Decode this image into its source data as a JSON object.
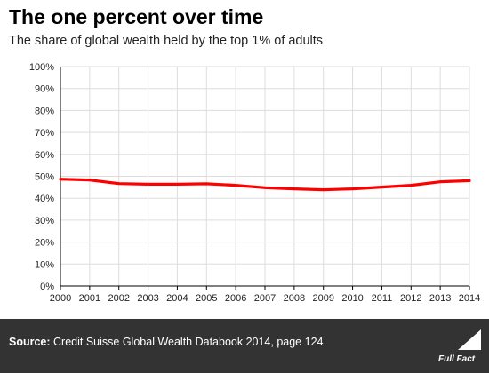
{
  "title": "The one percent over time",
  "subtitle": "The share of global wealth held by the top 1% of adults",
  "source": {
    "label": "Source:",
    "text": "Credit Suisse Global Wealth Databook 2014, page 124"
  },
  "logo": {
    "text": "Full Fact",
    "icon": "full-fact-logo-icon"
  },
  "colors": {
    "line": "#ff0000",
    "grid": "#dddddd",
    "axis": "#000000",
    "footer": "#333333"
  },
  "chart_data": {
    "type": "line",
    "title": "The one percent over time",
    "subtitle": "The share of global wealth held by the top 1% of adults",
    "xlabel": "",
    "ylabel": "",
    "x": [
      2000,
      2001,
      2002,
      2003,
      2004,
      2005,
      2006,
      2007,
      2008,
      2009,
      2010,
      2011,
      2012,
      2013,
      2014
    ],
    "x_tick_labels": [
      "2000",
      "2001",
      "2002",
      "2003",
      "2004",
      "2005",
      "2006",
      "2007",
      "2008",
      "2009",
      "2010",
      "2011",
      "2012",
      "2013",
      "2014"
    ],
    "y_tick_labels": [
      "0%",
      "10%",
      "20%",
      "30%",
      "40%",
      "50%",
      "60%",
      "70%",
      "80%",
      "90%",
      "100%"
    ],
    "y_ticks": [
      0,
      10,
      20,
      30,
      40,
      50,
      60,
      70,
      80,
      90,
      100
    ],
    "ylim": [
      0,
      100
    ],
    "grid": true,
    "series": [
      {
        "values": [
          48.7,
          48.3,
          46.7,
          46.4,
          46.4,
          46.6,
          45.9,
          44.8,
          44.3,
          43.9,
          44.3,
          45.1,
          45.9,
          47.5,
          48.0
        ]
      }
    ]
  }
}
